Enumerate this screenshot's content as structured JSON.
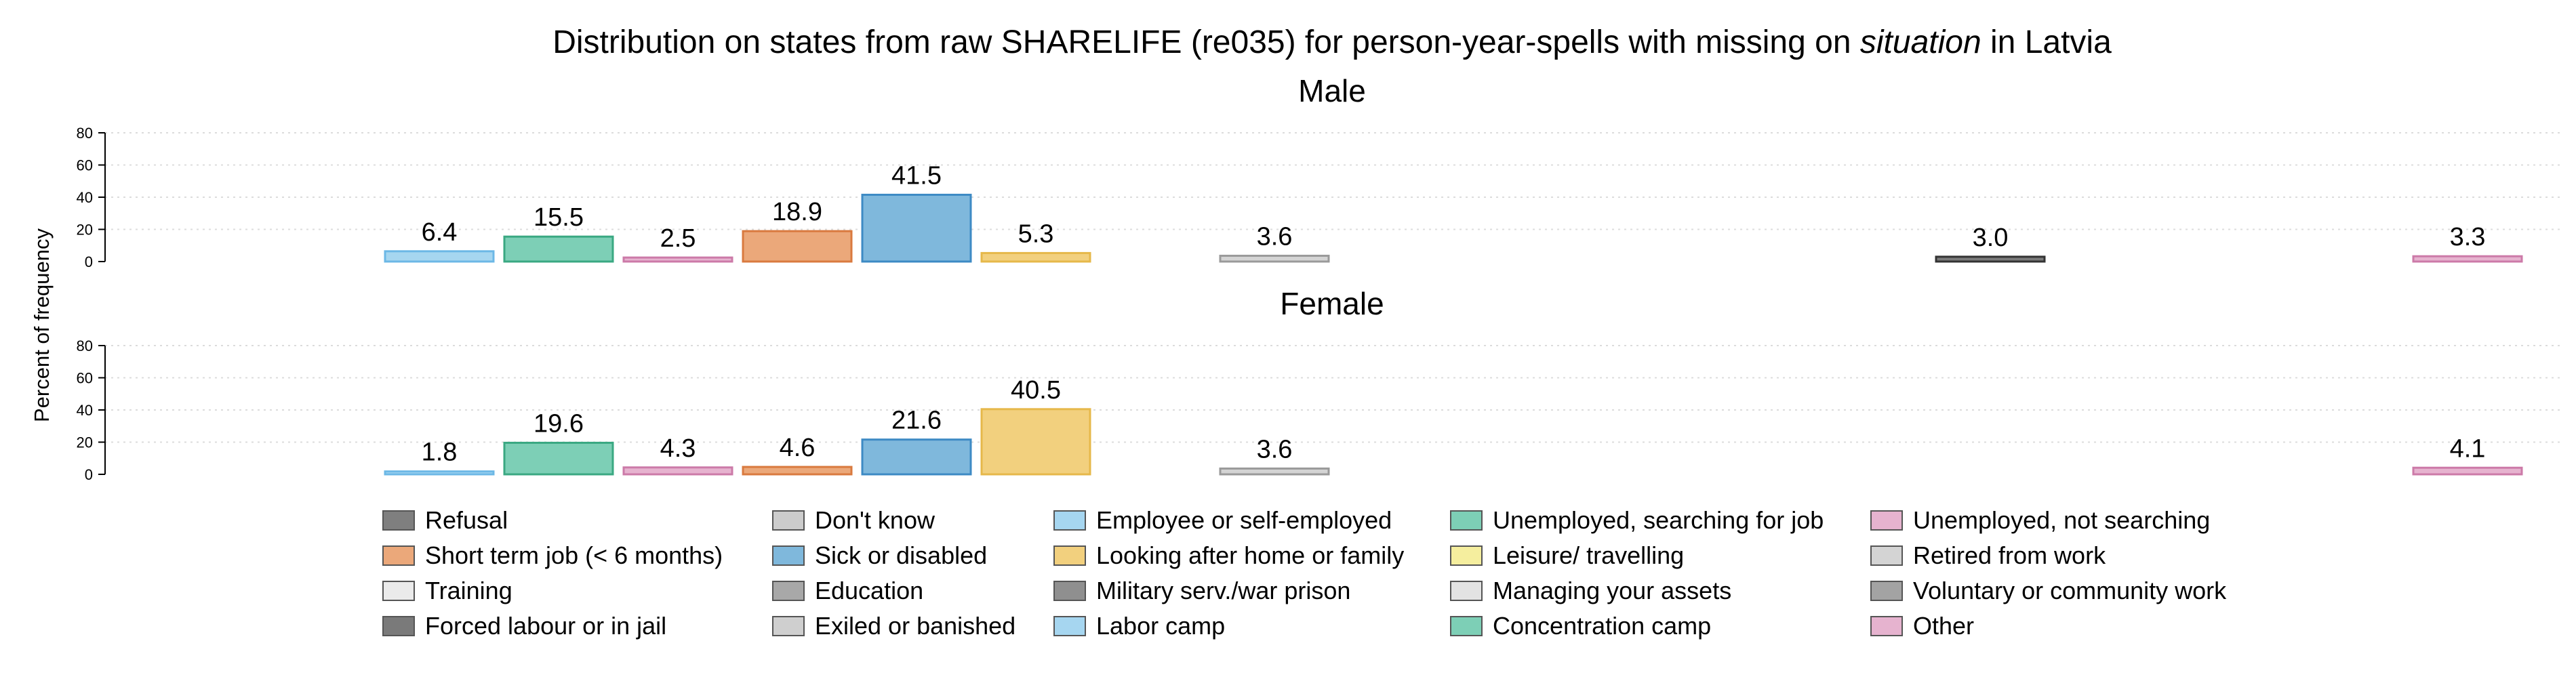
{
  "chart_data": {
    "type": "bar",
    "title_parts": [
      {
        "text": "Distribution on states from raw SHARELIFE (re035) for person-year-spells with missing on ",
        "style": "normal"
      },
      {
        "text": "situation",
        "style": "italic"
      },
      {
        "text": " in Latvia",
        "style": "normal"
      }
    ],
    "ylabel": "Percent of frequency",
    "xlabel": "",
    "ylim": [
      0,
      80
    ],
    "yticks": [
      0,
      20,
      40,
      60,
      80
    ],
    "grid": true,
    "legend_position": "bottom",
    "categories": [
      "Refusal",
      "Don't know",
      "Employee or self-employed",
      "Unemployed, searching for job",
      "Unemployed, not searching",
      "Short term job (< 6 months)",
      "Sick or disabled",
      "Looking after home or family",
      "Leisure/ travelling",
      "Retired from work",
      "Training",
      "Education",
      "Military serv./war prison",
      "Managing your assets",
      "Voluntary or community work",
      "Forced labour or in jail",
      "Exiled or banished",
      "Labor camp",
      "Concentration camp",
      "Other"
    ],
    "plotted_order": [
      "Employee or self-employed",
      "Unemployed, searching for job",
      "Unemployed, not searching",
      "Short term job (< 6 months)",
      "Sick or disabled",
      "Looking after home or family",
      "Leisure/ travelling",
      "Retired from work",
      "Training",
      "Education",
      "Military serv./war prison",
      "Managing your assets",
      "Voluntary or community work",
      "Forced labour or in jail",
      "Exiled or banished",
      "Labor camp",
      "Concentration camp",
      "Other"
    ],
    "colors": {
      "Refusal": "#7f7f7f",
      "Don't know": "#cccccc",
      "Employee or self-employed": "#a6d6f0",
      "Unemployed, searching for job": "#7dcfb6",
      "Unemployed, not searching": "#e6b3cf",
      "Short term job (< 6 months)": "#eba87a",
      "Sick or disabled": "#7fb8dc",
      "Looking after home or family": "#f2d07e",
      "Leisure/ travelling": "#f5ee9e",
      "Retired from work": "#d4d4d4",
      "Training": "#ebebeb",
      "Education": "#a8a8a8",
      "Military serv./war prison": "#8f8f8f",
      "Managing your assets": "#e3e3e3",
      "Voluntary or community work": "#a3a3a3",
      "Forced labour or in jail": "#7a7a7a",
      "Exiled or banished": "#cfcfcf",
      "Labor camp": "#a6d6f0",
      "Concentration camp": "#7dcfb6",
      "Other": "#e6b3cf"
    },
    "stroke_colors": {
      "Employee or self-employed": "#6cb8e6",
      "Unemployed, searching for job": "#3aa882",
      "Unemployed, not searching": "#cc7aa8",
      "Short term job (< 6 months)": "#d97a3f",
      "Sick or disabled": "#3d8ac4",
      "Looking after home or family": "#e6b84a",
      "Retired from work": "#9a9a9a",
      "Forced labour or in jail": "#333333",
      "Other": "#cc7aa8"
    },
    "panels": [
      {
        "title": "Male",
        "values": {
          "Employee or self-employed": 6.4,
          "Unemployed, searching for job": 15.5,
          "Unemployed, not searching": 2.5,
          "Short term job (< 6 months)": 18.9,
          "Sick or disabled": 41.5,
          "Looking after home or family": 5.3,
          "Retired from work": 3.6,
          "Forced labour or in jail": 3.0,
          "Other": 3.3
        },
        "labels": {
          "Employee or self-employed": "6.4",
          "Unemployed, searching for job": "15.5",
          "Unemployed, not searching": "2.5",
          "Short term job (< 6 months)": "18.9",
          "Sick or disabled": "41.5",
          "Looking after home or family": "5.3",
          "Retired from work": "3.6",
          "Forced labour or in jail": "3.0",
          "Other": "3.3"
        }
      },
      {
        "title": "Female",
        "values": {
          "Employee or self-employed": 1.8,
          "Unemployed, searching for job": 19.6,
          "Unemployed, not searching": 4.3,
          "Short term job (< 6 months)": 4.6,
          "Sick or disabled": 21.6,
          "Looking after home or family": 40.5,
          "Retired from work": 3.6,
          "Other": 4.1
        },
        "labels": {
          "Employee or self-employed": "1.8",
          "Unemployed, searching for job": "19.6",
          "Unemployed, not searching": "4.3",
          "Short term job (< 6 months)": "4.6",
          "Sick or disabled": "21.6",
          "Looking after home or family": "40.5",
          "Retired from work": "3.6",
          "Other": "4.1"
        }
      }
    ],
    "legend_entries": [
      "Refusal",
      "Don't know",
      "Employee or self-employed",
      "Unemployed, searching for job",
      "Unemployed, not searching",
      "Short term job (< 6 months)",
      "Sick or disabled",
      "Looking after home or family",
      "Leisure/ travelling",
      "Retired from work",
      "Training",
      "Education",
      "Military serv./war prison",
      "Managing your assets",
      "Voluntary or community work",
      "Forced labour or in jail",
      "Exiled or banished",
      "Labor camp",
      "Concentration camp",
      "Other"
    ],
    "legend_columns": 5
  }
}
